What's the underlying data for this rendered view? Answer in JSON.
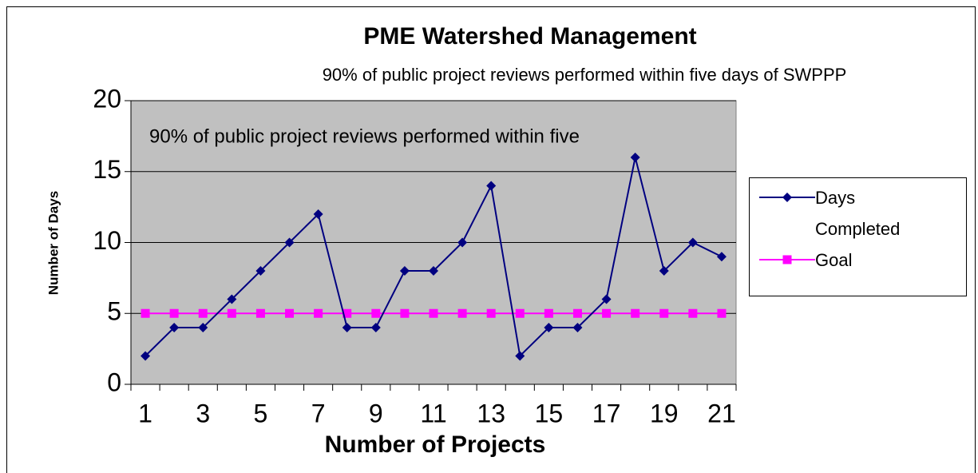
{
  "chart_data": {
    "type": "line",
    "title": "PME Watershed Management",
    "subtitle": "90% of public project reviews performed within five days of SWPPP",
    "annotation": "90% of public project reviews performed within five",
    "x_label": "Number of Projects",
    "y_label": "Number of Days",
    "categories": [
      1,
      null,
      3,
      null,
      5,
      null,
      7,
      null,
      9,
      null,
      11,
      null,
      13,
      null,
      15,
      null,
      17,
      null,
      19,
      null,
      21
    ],
    "series": [
      {
        "name": "Days Completed",
        "color": "#000080",
        "marker": "diamond",
        "values": [
          2,
          4,
          4,
          6,
          8,
          10,
          12,
          4,
          4,
          8,
          8,
          10,
          14,
          2,
          4,
          4,
          6,
          16,
          8,
          10,
          9
        ]
      },
      {
        "name": "Goal",
        "color": "#ff00ff",
        "marker": "square",
        "values": [
          5,
          5,
          5,
          5,
          5,
          5,
          5,
          5,
          5,
          5,
          5,
          5,
          5,
          5,
          5,
          5,
          5,
          5,
          5,
          5,
          5
        ]
      }
    ],
    "ylim": [
      0,
      20
    ],
    "yticks": [
      0,
      5,
      10,
      15,
      20
    ],
    "grid": true,
    "legend": "right"
  }
}
